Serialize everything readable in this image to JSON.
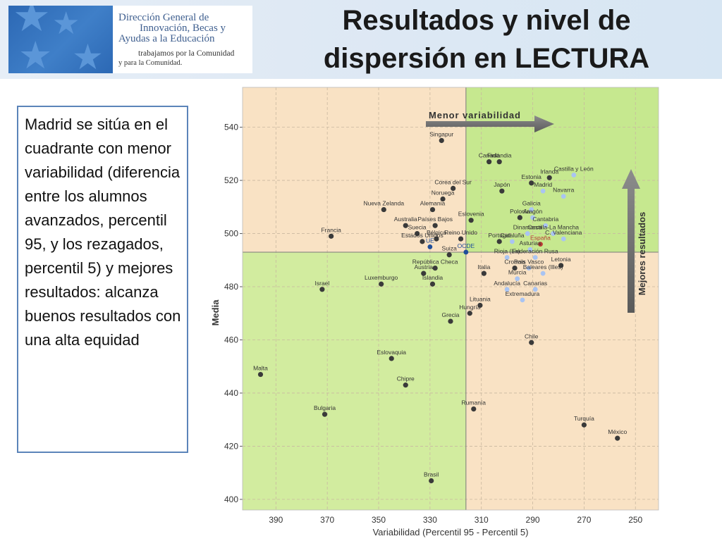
{
  "header": {
    "logo": {
      "line1": "Dirección General de",
      "line2": "Innovación, Becas y",
      "line3": "Ayudas a la Educación",
      "tagline1": "trabajamos por la Comunidad",
      "tagline2": "y para la Comunidad."
    },
    "title_line1": "Resultados y nivel de",
    "title_line2": "dispersión en LECTURA"
  },
  "note": {
    "text": "Madrid se sitúa en el cuadrante con menor variabilidad (diferencia entre los alumnos avanzados, percentil 95, y los rezagados, percentil 5) y mejores resultados: alcanza buenos resultados con una alta equidad"
  },
  "chart_data": {
    "type": "scatter",
    "xlabel": "Variabilidad (Percentil 95 - Percentil 5)",
    "ylabel": "Media",
    "x_reversed": true,
    "xlim": [
      403,
      241
    ],
    "ylim": [
      396,
      555
    ],
    "x_ticks": [
      390,
      370,
      350,
      330,
      310,
      290,
      270,
      250
    ],
    "y_ticks": [
      400,
      420,
      440,
      460,
      480,
      500,
      520,
      540
    ],
    "grid": true,
    "reference_lines": {
      "x": 316,
      "y": 493
    },
    "quadrant_colors": {
      "top_left": "#f9e2c4",
      "top_right": "#c6e88f",
      "bottom_left": "#d2ec9f",
      "bottom_right": "#f9e2c4"
    },
    "series_colors": {
      "country": "#3a3a3a",
      "region": "#a9c4f2",
      "aggregate": "#1f4e9a",
      "spain": "#b73a34"
    },
    "annotations": [
      {
        "text": "Menor variabilidad",
        "kind": "arrow-right"
      },
      {
        "text": "Mejores resultados",
        "kind": "arrow-up"
      }
    ],
    "points": [
      {
        "label": "Singapur",
        "x": 325.5,
        "y": 535,
        "group": "country"
      },
      {
        "label": "Canadá",
        "x": 307,
        "y": 527,
        "group": "country"
      },
      {
        "label": "Finlandia",
        "x": 303,
        "y": 527,
        "group": "country"
      },
      {
        "label": "Corea del Sur",
        "x": 321,
        "y": 517,
        "group": "country"
      },
      {
        "label": "Estonia",
        "x": 290.5,
        "y": 519,
        "group": "country"
      },
      {
        "label": "Irlanda",
        "x": 283.5,
        "y": 521,
        "group": "country"
      },
      {
        "label": "Castilla y León",
        "x": 274,
        "y": 522,
        "group": "region"
      },
      {
        "label": "Japón",
        "x": 302,
        "y": 516,
        "group": "country"
      },
      {
        "label": "Madrid",
        "x": 286,
        "y": 516,
        "group": "region"
      },
      {
        "label": "Noruega",
        "x": 325,
        "y": 513,
        "group": "country"
      },
      {
        "label": "Navarra",
        "x": 278,
        "y": 514,
        "group": "region"
      },
      {
        "label": "Nueva Zelanda",
        "x": 348,
        "y": 509,
        "group": "country"
      },
      {
        "label": "Alemania",
        "x": 329,
        "y": 509,
        "group": "country"
      },
      {
        "label": "Galicia",
        "x": 290.5,
        "y": 509,
        "group": "region"
      },
      {
        "label": "Aragón",
        "x": 290,
        "y": 506,
        "group": "region"
      },
      {
        "label": "Eslovenia",
        "x": 314,
        "y": 505,
        "group": "country"
      },
      {
        "label": "Polonia",
        "x": 295,
        "y": 506,
        "group": "country"
      },
      {
        "label": "Australia",
        "x": 339.5,
        "y": 503,
        "group": "country"
      },
      {
        "label": "Países Bajos",
        "x": 328,
        "y": 503,
        "group": "country"
      },
      {
        "label": "Cantabria",
        "x": 285,
        "y": 503,
        "group": "region"
      },
      {
        "label": "Dinamarca",
        "x": 292,
        "y": 500,
        "group": "region"
      },
      {
        "label": "Castilla-La Mancha",
        "x": 282,
        "y": 500,
        "group": "region"
      },
      {
        "label": "Francia",
        "x": 368.5,
        "y": 499,
        "group": "country"
      },
      {
        "label": "Suecia",
        "x": 335,
        "y": 500,
        "group": "country"
      },
      {
        "label": "Bélgica",
        "x": 327.5,
        "y": 498,
        "group": "country"
      },
      {
        "label": "Reino Unido",
        "x": 318,
        "y": 498,
        "group": "country"
      },
      {
        "label": "Cataluña",
        "x": 298,
        "y": 497,
        "group": "region"
      },
      {
        "label": "C. Valenciana",
        "x": 278,
        "y": 498,
        "group": "region"
      },
      {
        "label": "Estados Unidos",
        "x": 333,
        "y": 497,
        "group": "country"
      },
      {
        "label": "Portugal",
        "x": 303,
        "y": 497,
        "group": "country"
      },
      {
        "label": "España",
        "x": 287,
        "y": 496,
        "group": "spain"
      },
      {
        "label": "Asturias",
        "x": 291,
        "y": 494,
        "group": "region"
      },
      {
        "label": "UE",
        "x": 330,
        "y": 495,
        "group": "aggregate"
      },
      {
        "label": "OCDE",
        "x": 316,
        "y": 493,
        "group": "aggregate"
      },
      {
        "label": "Suiza",
        "x": 322.5,
        "y": 492,
        "group": "country"
      },
      {
        "label": "Rioja (La)",
        "x": 300,
        "y": 491,
        "group": "region"
      },
      {
        "label": "Federación Rusa",
        "x": 289,
        "y": 491,
        "group": "region"
      },
      {
        "label": "República Checa",
        "x": 328,
        "y": 487,
        "group": "country"
      },
      {
        "label": "País Vasco",
        "x": 291.5,
        "y": 487,
        "group": "region"
      },
      {
        "label": "Letonia",
        "x": 279,
        "y": 488,
        "group": "country"
      },
      {
        "label": "Croacia",
        "x": 297,
        "y": 487,
        "group": "country"
      },
      {
        "label": "Italia",
        "x": 309,
        "y": 485,
        "group": "country"
      },
      {
        "label": "Baleares (Illes)",
        "x": 286,
        "y": 485,
        "group": "region"
      },
      {
        "label": "Luxemburgo",
        "x": 349,
        "y": 481,
        "group": "country"
      },
      {
        "label": "Austria",
        "x": 332.5,
        "y": 485,
        "group": "country"
      },
      {
        "label": "Islandia",
        "x": 329,
        "y": 481,
        "group": "country"
      },
      {
        "label": "Murcia",
        "x": 296,
        "y": 483,
        "group": "region"
      },
      {
        "label": "Israel",
        "x": 372,
        "y": 479,
        "group": "country"
      },
      {
        "label": "Canarias",
        "x": 289,
        "y": 479,
        "group": "region"
      },
      {
        "label": "Andalucía",
        "x": 300,
        "y": 479,
        "group": "region"
      },
      {
        "label": "Lituania",
        "x": 310.5,
        "y": 473,
        "group": "country"
      },
      {
        "label": "Extremadura",
        "x": 294,
        "y": 475,
        "group": "region"
      },
      {
        "label": "Grecia",
        "x": 322,
        "y": 467,
        "group": "country"
      },
      {
        "label": "Hungría",
        "x": 314.5,
        "y": 470,
        "group": "country"
      },
      {
        "label": "Chile",
        "x": 290.5,
        "y": 459,
        "group": "country"
      },
      {
        "label": "Eslovaquia",
        "x": 345,
        "y": 453,
        "group": "country"
      },
      {
        "label": "Malta",
        "x": 396,
        "y": 447,
        "group": "country"
      },
      {
        "label": "Chipre",
        "x": 339.5,
        "y": 443,
        "group": "country"
      },
      {
        "label": "Rumanía",
        "x": 313,
        "y": 434,
        "group": "country"
      },
      {
        "label": "Bulgaria",
        "x": 371,
        "y": 432,
        "group": "country"
      },
      {
        "label": "Turquía",
        "x": 270,
        "y": 428,
        "group": "country"
      },
      {
        "label": "México",
        "x": 257,
        "y": 423,
        "group": "country"
      },
      {
        "label": "Brasil",
        "x": 329.5,
        "y": 407,
        "group": "country"
      }
    ]
  }
}
